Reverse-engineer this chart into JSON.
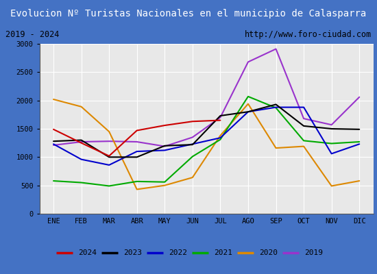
{
  "title": "Evolucion Nº Turistas Nacionales en el municipio de Calasparra",
  "subtitle_left": "2019 - 2024",
  "subtitle_right": "http://www.foro-ciudad.com",
  "months": [
    "ENE",
    "FEB",
    "MAR",
    "ABR",
    "MAY",
    "JUN",
    "JUL",
    "AGO",
    "SEP",
    "OCT",
    "NOV",
    "DIC"
  ],
  "ylim": [
    0,
    3000
  ],
  "yticks": [
    0,
    500,
    1000,
    1500,
    2000,
    2500,
    3000
  ],
  "series": {
    "2024": {
      "color": "#cc0000",
      "data": [
        1490,
        1250,
        1020,
        1470,
        1560,
        1630,
        1650,
        null,
        null,
        null,
        null,
        null
      ]
    },
    "2023": {
      "color": "#000000",
      "data": [
        1280,
        1300,
        1000,
        1000,
        1200,
        1220,
        1730,
        1800,
        1930,
        1550,
        1500,
        1490
      ]
    },
    "2022": {
      "color": "#0000cc",
      "data": [
        1230,
        960,
        860,
        1100,
        1120,
        1230,
        1340,
        1800,
        1880,
        1880,
        1060,
        1230
      ]
    },
    "2021": {
      "color": "#00aa00",
      "data": [
        580,
        550,
        490,
        570,
        560,
        1010,
        1310,
        2070,
        1870,
        1290,
        1240,
        1270
      ]
    },
    "2020": {
      "color": "#dd8800",
      "data": [
        2020,
        1890,
        1450,
        430,
        500,
        640,
        1380,
        1940,
        1160,
        1190,
        490,
        580
      ]
    },
    "2019": {
      "color": "#9933cc",
      "data": [
        1210,
        1270,
        1280,
        1270,
        1190,
        1350,
        1700,
        2680,
        2910,
        1680,
        1570,
        2060
      ]
    }
  },
  "title_bg_color": "#4472c4",
  "title_text_color": "white",
  "border_color": "#4472c4",
  "subtitle_bg": "#e8e8e8",
  "plot_bg": "#e8e8e8",
  "grid_color": "#ffffff"
}
